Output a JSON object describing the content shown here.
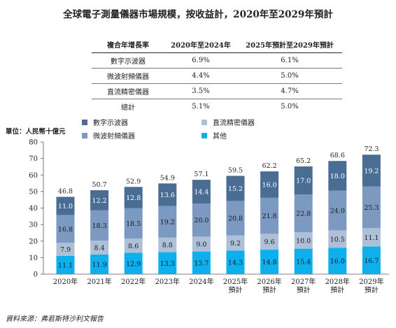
{
  "title": "全球電子測量儀器市場規模，按收益計，2020年至2029年預計",
  "cagr_table": {
    "headers": [
      "複合年增長率",
      "2020年至2024年",
      "2025年預計至2029年預計"
    ],
    "rows": [
      {
        "name": "數字示波器",
        "a": "6.9%",
        "b": "6.1%"
      },
      {
        "name": "微波射頻儀器",
        "a": "4.4%",
        "b": "5.0%"
      },
      {
        "name": "直流精密儀器",
        "a": "3.5%",
        "b": "4.7%"
      },
      {
        "name": "總計",
        "a": "5.1%",
        "b": "5.0%"
      }
    ]
  },
  "unit_label": "單位：人民幣十億元",
  "source": "資料來源：弗若斯特沙利文報告",
  "colors": {
    "數字示波器": "#4a6d94",
    "微波射頻儀器": "#7c9ac1",
    "直流精密儀器": "#aebfd8",
    "其他": "#0db0ec"
  },
  "chart_data": {
    "type": "bar",
    "stacked": true,
    "categories": [
      "2020年",
      "2021年",
      "2022年",
      "2023年",
      "2024年",
      "2025年\n預計",
      "2026年\n預計",
      "2027年\n預計",
      "2028年\n預計",
      "2029年\n預計"
    ],
    "series": [
      {
        "name": "其他",
        "values": [
          11.1,
          11.9,
          12.9,
          13.3,
          13.7,
          14.3,
          14.8,
          15.4,
          16.0,
          16.7
        ]
      },
      {
        "name": "直流精密儀器",
        "values": [
          7.9,
          8.4,
          8.6,
          8.8,
          9.0,
          9.2,
          9.6,
          10.0,
          10.5,
          11.1
        ]
      },
      {
        "name": "微波射頻儀器",
        "values": [
          16.8,
          18.3,
          18.5,
          19.2,
          20.0,
          20.8,
          21.8,
          22.8,
          24.0,
          25.3
        ]
      },
      {
        "name": "數字示波器",
        "values": [
          11.0,
          12.2,
          12.8,
          13.6,
          14.4,
          15.2,
          16.0,
          17.0,
          18.0,
          19.2
        ]
      }
    ],
    "totals": [
      46.8,
      50.7,
      52.9,
      54.9,
      57.1,
      59.5,
      62.2,
      65.2,
      68.6,
      72.3
    ],
    "ylim": [
      0,
      80
    ],
    "yticks": [
      0,
      10,
      20,
      30,
      40,
      50,
      60,
      70,
      80
    ],
    "legend": [
      {
        "name": "數字示波器"
      },
      {
        "name": "直流精密儀器"
      },
      {
        "name": "微波射頻儀器"
      },
      {
        "name": "其他"
      }
    ]
  }
}
